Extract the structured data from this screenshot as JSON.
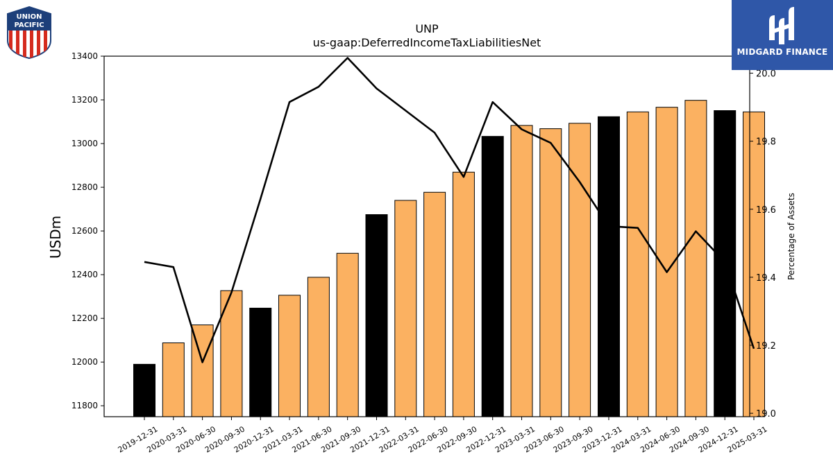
{
  "chart_data": {
    "type": "bar",
    "title": "UNP",
    "subtitle": "us-gaap:DeferredIncomeTaxLiabilitiesNet",
    "ylabel": "USDm",
    "y2label": "Percentage of Assets",
    "ylim": [
      11750,
      13400
    ],
    "y2lim": [
      18.99,
      20.05
    ],
    "yticks": [
      11800,
      12000,
      12200,
      12400,
      12600,
      12800,
      13000,
      13200,
      13400
    ],
    "y2ticks": [
      19.0,
      19.2,
      19.4,
      19.6,
      19.8,
      20.0
    ],
    "categories": [
      "2019-12-31",
      "2020-03-31",
      "2020-06-30",
      "2020-09-30",
      "2020-12-31",
      "2021-03-31",
      "2021-06-30",
      "2021-09-30",
      "2021-12-31",
      "2022-03-31",
      "2022-06-30",
      "2022-09-30",
      "2022-12-31",
      "2023-03-31",
      "2023-06-30",
      "2023-09-30",
      "2023-12-31",
      "2024-03-31",
      "2024-06-30",
      "2024-09-30",
      "2024-12-31",
      "2025-03-31"
    ],
    "series": [
      {
        "kind": "bar",
        "values": [
          11990,
          12088,
          12170,
          12327,
          12247,
          12306,
          12388,
          12498,
          12675,
          12740,
          12777,
          12869,
          13033,
          13083,
          13068,
          13093,
          13123,
          13145,
          13166,
          13198,
          13151,
          13145
        ],
        "year_end": [
          true,
          false,
          false,
          false,
          true,
          false,
          false,
          false,
          true,
          false,
          false,
          false,
          true,
          false,
          false,
          false,
          true,
          false,
          false,
          false,
          true,
          false
        ]
      },
      {
        "kind": "line",
        "axis": "right",
        "values": [
          19.445,
          19.43,
          19.15,
          19.355,
          19.63,
          19.915,
          19.96,
          20.045,
          19.955,
          19.89,
          19.825,
          19.695,
          19.915,
          19.835,
          19.795,
          19.68,
          19.55,
          19.545,
          19.415,
          19.535,
          19.445,
          19.19
        ]
      }
    ],
    "colors": {
      "bar": "#fbb161",
      "bar_year_end": "#000000",
      "line": "#000000"
    },
    "grid": false
  },
  "logos": {
    "left": {
      "line1": "UNION",
      "line2": "PACIFIC"
    },
    "right": {
      "text": "MIDGARD FINANCE"
    }
  }
}
